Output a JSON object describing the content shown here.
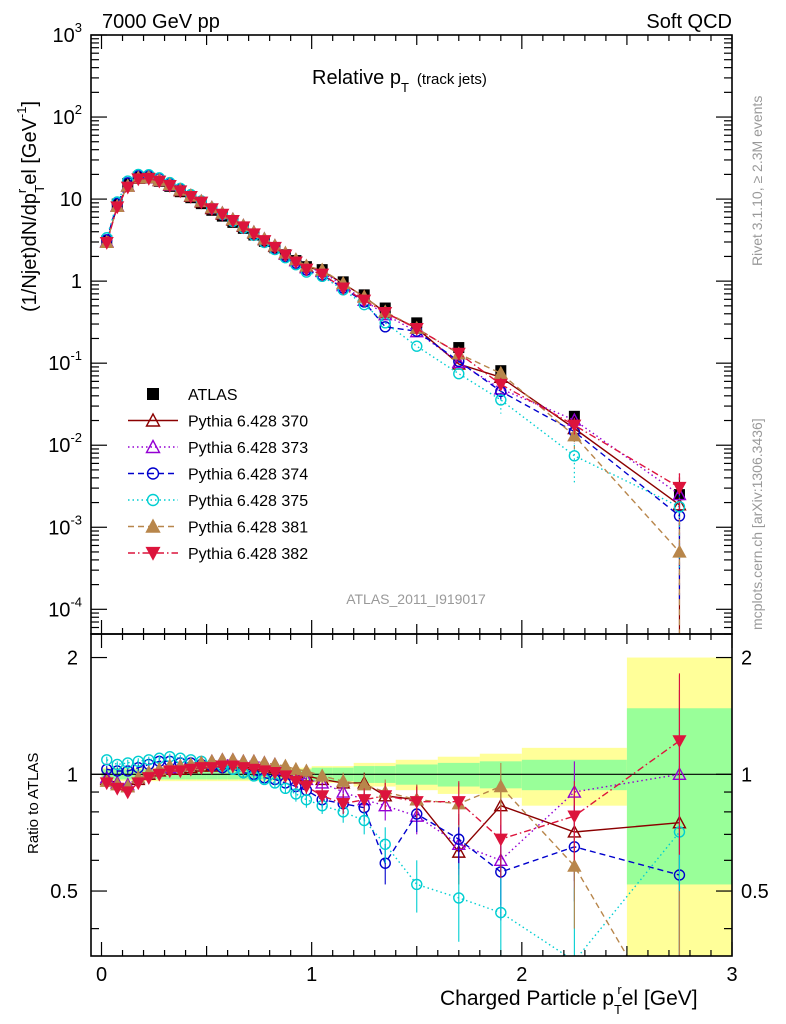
{
  "header": {
    "left": "7000 GeV pp",
    "right": "Soft QCD",
    "side_top": "Rivet 3.1.10, ≥ 2.3M events",
    "side_bottom": "mcplots.cern.ch [arXiv:1306.3436]"
  },
  "chart_data": {
    "type": "line",
    "title_main": "Relative p",
    "title_sub": "T",
    "title_note": "(track jets)",
    "analysis_id": "ATLAS_2011_I919017",
    "ylabel": "(1/Njet)dN/dp",
    "ylabel_sup": "r",
    "ylabel_sub": "T",
    "ylabel_rest": "el [GeV",
    "ylabel_unit_sup": "-1",
    "ylabel_close": "]",
    "ratio_ylabel": "Ratio to ATLAS",
    "xlabel": "Charged Particle p",
    "xlabel_sub": "T",
    "xlabel_sup": "r",
    "xlabel_rest": "el [GeV]",
    "xlim": [
      -0.05,
      3.0
    ],
    "ylim": [
      5e-05,
      1000
    ],
    "yscale": "log",
    "ratio_ylim": [
      0.34,
      2.3
    ],
    "x_ticks": [
      "0",
      "1",
      "2",
      "3"
    ],
    "y_ticks": [
      {
        "base": "10",
        "exp": "-4"
      },
      {
        "base": "10",
        "exp": "-3"
      },
      {
        "base": "10",
        "exp": "-2"
      },
      {
        "base": "10",
        "exp": "-1"
      },
      {
        "base": "1",
        "exp": ""
      },
      {
        "base": "10",
        "exp": ""
      },
      {
        "base": "10",
        "exp": "2"
      },
      {
        "base": "10",
        "exp": "3"
      }
    ],
    "ratio_ticks": [
      "0.5",
      "1",
      "2"
    ],
    "x": [
      0.025,
      0.075,
      0.125,
      0.175,
      0.225,
      0.275,
      0.325,
      0.375,
      0.425,
      0.475,
      0.525,
      0.575,
      0.625,
      0.675,
      0.725,
      0.775,
      0.825,
      0.875,
      0.925,
      0.975,
      1.05,
      1.15,
      1.25,
      1.35,
      1.5,
      1.7,
      1.9,
      2.25,
      2.75
    ],
    "x_bin_edges": [
      0.0,
      0.05,
      0.1,
      0.15,
      0.2,
      0.25,
      0.3,
      0.35,
      0.4,
      0.45,
      0.5,
      0.55,
      0.6,
      0.65,
      0.7,
      0.75,
      0.8,
      0.85,
      0.9,
      0.95,
      1.0,
      1.1,
      1.2,
      1.3,
      1.4,
      1.6,
      1.8,
      2.0,
      2.5,
      3.0
    ],
    "ratio_band_stat": [
      0.03,
      0.03,
      0.03,
      0.03,
      0.03,
      0.03,
      0.03,
      0.03,
      0.03,
      0.03,
      0.03,
      0.03,
      0.03,
      0.03,
      0.03,
      0.03,
      0.03,
      0.03,
      0.03,
      0.03,
      0.04,
      0.04,
      0.05,
      0.05,
      0.06,
      0.07,
      0.08,
      0.09,
      0.48
    ],
    "ratio_band_total": [
      0.04,
      0.04,
      0.04,
      0.04,
      0.04,
      0.04,
      0.04,
      0.04,
      0.04,
      0.04,
      0.04,
      0.04,
      0.04,
      0.04,
      0.04,
      0.04,
      0.04,
      0.04,
      0.04,
      0.04,
      0.05,
      0.05,
      0.07,
      0.07,
      0.09,
      0.11,
      0.13,
      0.17,
      1.0
    ],
    "series": [
      {
        "name": "ATLAS",
        "color": "#000000",
        "marker": "square",
        "linestyle": "none",
        "values": [
          3.1,
          8.7,
          15.5,
          18.5,
          18.2,
          16.5,
          14.3,
          12.3,
          10.4,
          8.8,
          7.3,
          6.2,
          5.2,
          4.4,
          3.65,
          3.05,
          2.55,
          2.1,
          1.78,
          1.5,
          1.38,
          0.98,
          0.68,
          0.47,
          0.31,
          0.155,
          0.081,
          0.0225,
          0.0025
        ]
      },
      {
        "name": "Pythia 6.428 370",
        "color": "#8b0000",
        "marker": "triangle-up-open",
        "linestyle": "solid",
        "ratio": [
          0.97,
          0.95,
          0.93,
          0.97,
          1.0,
          1.02,
          1.03,
          1.03,
          1.04,
          1.05,
          1.05,
          1.06,
          1.07,
          1.06,
          1.06,
          1.05,
          1.04,
          1.02,
          1.0,
          0.99,
          0.97,
          0.95,
          0.95,
          0.88,
          0.86,
          0.63,
          0.83,
          0.71,
          0.75
        ],
        "ratio_err": [
          0.02,
          0.02,
          0.02,
          0.02,
          0.02,
          0.02,
          0.02,
          0.02,
          0.02,
          0.02,
          0.02,
          0.02,
          0.03,
          0.03,
          0.03,
          0.03,
          0.03,
          0.03,
          0.04,
          0.04,
          0.04,
          0.05,
          0.06,
          0.07,
          0.08,
          0.11,
          0.14,
          0.18,
          0.9
        ]
      },
      {
        "name": "Pythia 6.428 373",
        "color": "#9400d3",
        "marker": "triangle-up-open",
        "linestyle": "dotted",
        "ratio": [
          0.98,
          0.95,
          0.94,
          0.98,
          1.01,
          1.03,
          1.04,
          1.05,
          1.06,
          1.07,
          1.08,
          1.09,
          1.09,
          1.08,
          1.08,
          1.07,
          1.06,
          1.03,
          1.0,
          0.97,
          0.95,
          0.9,
          0.86,
          0.83,
          0.78,
          0.66,
          0.6,
          0.9,
          1.0
        ],
        "ratio_err": [
          0.02,
          0.02,
          0.02,
          0.02,
          0.02,
          0.02,
          0.02,
          0.02,
          0.02,
          0.02,
          0.02,
          0.02,
          0.03,
          0.03,
          0.03,
          0.03,
          0.03,
          0.03,
          0.04,
          0.04,
          0.04,
          0.05,
          0.06,
          0.07,
          0.08,
          0.11,
          0.14,
          0.18,
          0.8
        ]
      },
      {
        "name": "Pythia 6.428 374",
        "color": "#0000cd",
        "marker": "circle-open",
        "linestyle": "dashed",
        "ratio": [
          1.03,
          1.02,
          1.02,
          1.04,
          1.06,
          1.08,
          1.08,
          1.07,
          1.07,
          1.06,
          1.05,
          1.04,
          1.03,
          1.01,
          1.0,
          0.98,
          0.97,
          0.95,
          0.93,
          0.91,
          0.86,
          0.84,
          0.82,
          0.59,
          0.79,
          0.68,
          0.56,
          0.65,
          0.55
        ],
        "ratio_err": [
          0.02,
          0.02,
          0.02,
          0.02,
          0.02,
          0.02,
          0.02,
          0.02,
          0.02,
          0.02,
          0.02,
          0.02,
          0.03,
          0.03,
          0.03,
          0.03,
          0.03,
          0.03,
          0.04,
          0.04,
          0.04,
          0.05,
          0.06,
          0.07,
          0.08,
          0.11,
          0.14,
          0.18,
          0.5
        ]
      },
      {
        "name": "Pythia 6.428 375",
        "color": "#00ced1",
        "marker": "circle-open",
        "linestyle": "dotted",
        "ratio": [
          1.09,
          1.06,
          1.07,
          1.08,
          1.09,
          1.1,
          1.11,
          1.1,
          1.09,
          1.08,
          1.06,
          1.05,
          1.03,
          1.01,
          0.99,
          0.97,
          0.95,
          0.92,
          0.89,
          0.86,
          0.83,
          0.8,
          0.76,
          0.66,
          0.52,
          0.48,
          0.44,
          0.33,
          0.71
        ],
        "ratio_err": [
          0.02,
          0.02,
          0.02,
          0.02,
          0.02,
          0.02,
          0.02,
          0.02,
          0.02,
          0.02,
          0.02,
          0.02,
          0.03,
          0.03,
          0.03,
          0.03,
          0.03,
          0.03,
          0.04,
          0.04,
          0.04,
          0.05,
          0.06,
          0.07,
          0.08,
          0.11,
          0.14,
          0.18,
          0.6
        ]
      },
      {
        "name": "Pythia 6.428 381",
        "color": "#b8864b",
        "marker": "triangle-up",
        "linestyle": "dashed",
        "ratio": [
          0.96,
          0.94,
          0.93,
          0.98,
          1.01,
          1.03,
          1.05,
          1.05,
          1.06,
          1.07,
          1.08,
          1.09,
          1.09,
          1.08,
          1.08,
          1.07,
          1.06,
          1.05,
          1.03,
          1.02,
          0.99,
          0.96,
          0.94,
          0.9,
          0.86,
          0.84,
          0.93,
          0.58,
          0.2
        ],
        "ratio_err": [
          0.02,
          0.02,
          0.02,
          0.02,
          0.02,
          0.02,
          0.02,
          0.02,
          0.02,
          0.02,
          0.02,
          0.02,
          0.03,
          0.03,
          0.03,
          0.03,
          0.03,
          0.03,
          0.04,
          0.04,
          0.04,
          0.05,
          0.06,
          0.07,
          0.08,
          0.11,
          0.14,
          0.18,
          0.3
        ]
      },
      {
        "name": "Pythia 6.428 382",
        "color": "#dc143c",
        "marker": "triangle-down",
        "linestyle": "dashdot",
        "ratio": [
          0.95,
          0.92,
          0.9,
          0.95,
          0.98,
          1.0,
          1.02,
          1.02,
          1.03,
          1.04,
          1.04,
          1.05,
          1.05,
          1.04,
          1.03,
          1.02,
          1.01,
          0.99,
          0.96,
          0.93,
          0.88,
          0.84,
          0.86,
          0.88,
          0.85,
          0.85,
          0.68,
          0.78,
          1.22
        ],
        "ratio_err": [
          0.02,
          0.02,
          0.02,
          0.02,
          0.02,
          0.02,
          0.02,
          0.02,
          0.02,
          0.02,
          0.02,
          0.02,
          0.03,
          0.03,
          0.03,
          0.03,
          0.03,
          0.03,
          0.04,
          0.04,
          0.04,
          0.05,
          0.06,
          0.07,
          0.08,
          0.11,
          0.14,
          0.18,
          0.6
        ]
      }
    ]
  }
}
